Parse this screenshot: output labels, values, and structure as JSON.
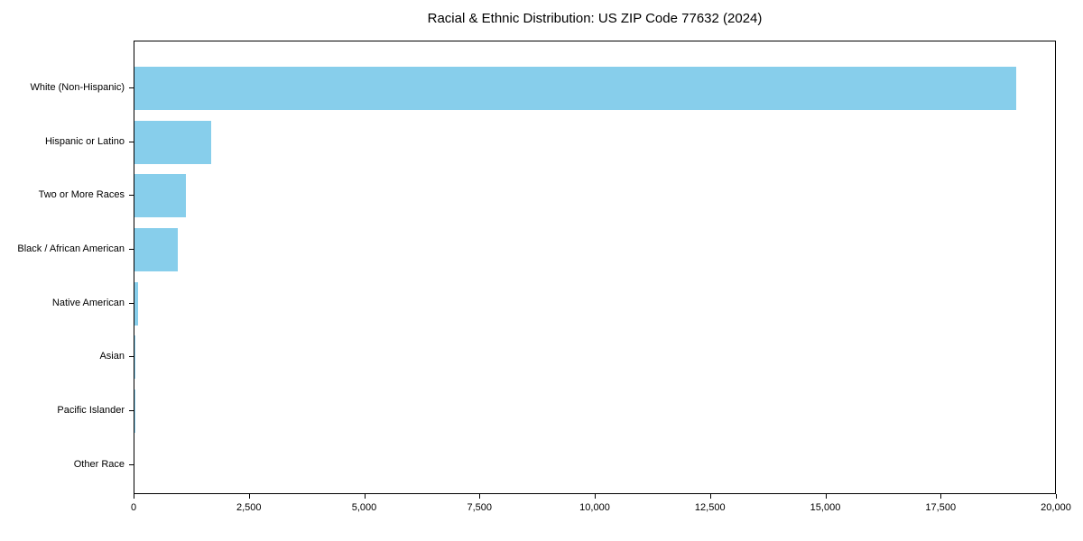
{
  "chart_data": {
    "type": "bar",
    "orientation": "horizontal",
    "title": "Racial & Ethnic Distribution: US ZIP Code 77632 (2024)",
    "xlabel": "",
    "ylabel": "",
    "categories": [
      "White (Non-Hispanic)",
      "Hispanic or Latino",
      "Two or More Races",
      "Black / African American",
      "Native American",
      "Asian",
      "Pacific Islander",
      "Other Race"
    ],
    "values": [
      19150,
      1660,
      1120,
      940,
      80,
      25,
      20,
      0
    ],
    "xlim": [
      0,
      20000
    ],
    "x_ticks": [
      0,
      2500,
      5000,
      7500,
      10000,
      12500,
      15000,
      17500,
      20000
    ],
    "x_tick_labels": [
      "0",
      "2,500",
      "5,000",
      "7,500",
      "10,000",
      "12,500",
      "15,000",
      "17,500",
      "20,000"
    ],
    "bar_color": "#87CEEB",
    "axis_color": "#000000",
    "text_color": "#000000",
    "grid": false,
    "legend": null
  }
}
